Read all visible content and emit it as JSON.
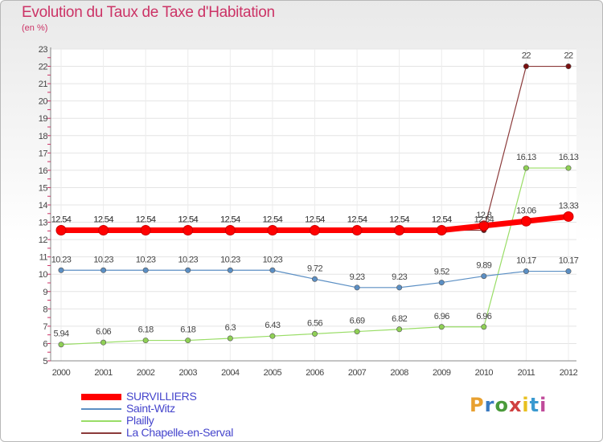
{
  "chart_data": {
    "type": "line",
    "title": "Evolution du Taux de Taxe d'Habitation",
    "subtitle": "(en %)",
    "x": [
      "2000",
      "2001",
      "2002",
      "2003",
      "2004",
      "2005",
      "2006",
      "2007",
      "2008",
      "2009",
      "2010",
      "2011",
      "2012"
    ],
    "ylim": [
      5,
      23
    ],
    "yticks": [
      5,
      6,
      7,
      8,
      9,
      10,
      11,
      12,
      13,
      14,
      15,
      16,
      17,
      18,
      19,
      20,
      21,
      22,
      23
    ],
    "grid": true,
    "legend_position": "bottom-left",
    "series": [
      {
        "name": "SURVILLIERS",
        "color": "#ff0000",
        "values": [
          12.54,
          12.54,
          12.54,
          12.54,
          12.54,
          12.54,
          12.54,
          12.54,
          12.54,
          12.54,
          12.8,
          13.06,
          13.33
        ],
        "labels": [
          "12.54",
          "12.54",
          "12.54",
          "12.54",
          "12.54",
          "12.54",
          "12.54",
          "12.54",
          "12.54",
          "12.54",
          "12.8",
          "13.06",
          "13.33"
        ]
      },
      {
        "name": "Saint-Witz",
        "color": "#5b8fc4",
        "values": [
          10.23,
          10.23,
          10.23,
          10.23,
          10.23,
          10.23,
          9.72,
          9.23,
          9.23,
          9.52,
          9.89,
          10.17,
          10.17
        ],
        "labels": [
          "10.23",
          "10.23",
          "10.23",
          "10.23",
          "10.23",
          "10.23",
          "9.72",
          "9.23",
          "9.23",
          "9.52",
          "9.89",
          "10.17",
          "10.17"
        ]
      },
      {
        "name": "Plailly",
        "color": "#99dd66",
        "values": [
          5.94,
          6.06,
          6.18,
          6.18,
          6.3,
          6.43,
          6.56,
          6.69,
          6.82,
          6.96,
          6.96,
          16.13,
          16.13
        ],
        "labels": [
          "5.94",
          "6.06",
          "6.18",
          "6.18",
          "6.3",
          "6.43",
          "6.56",
          "6.69",
          "6.82",
          "6.96",
          "6.96",
          "16.13",
          "16.13"
        ]
      },
      {
        "name": "La Chapelle-en-Serval",
        "color": "#8b3a3a",
        "values": [
          12.54,
          12.54,
          12.54,
          12.54,
          12.54,
          12.54,
          12.54,
          12.54,
          12.54,
          12.54,
          12.54,
          22,
          22
        ],
        "labels": [
          "12.54",
          "12.54",
          "12.54",
          "12.54",
          "12.54",
          "12.54",
          "12.54",
          "12.54",
          "12.54",
          "12.54",
          "12.54",
          "22",
          "22"
        ]
      }
    ]
  },
  "logo": {
    "text": "Proxiti"
  }
}
